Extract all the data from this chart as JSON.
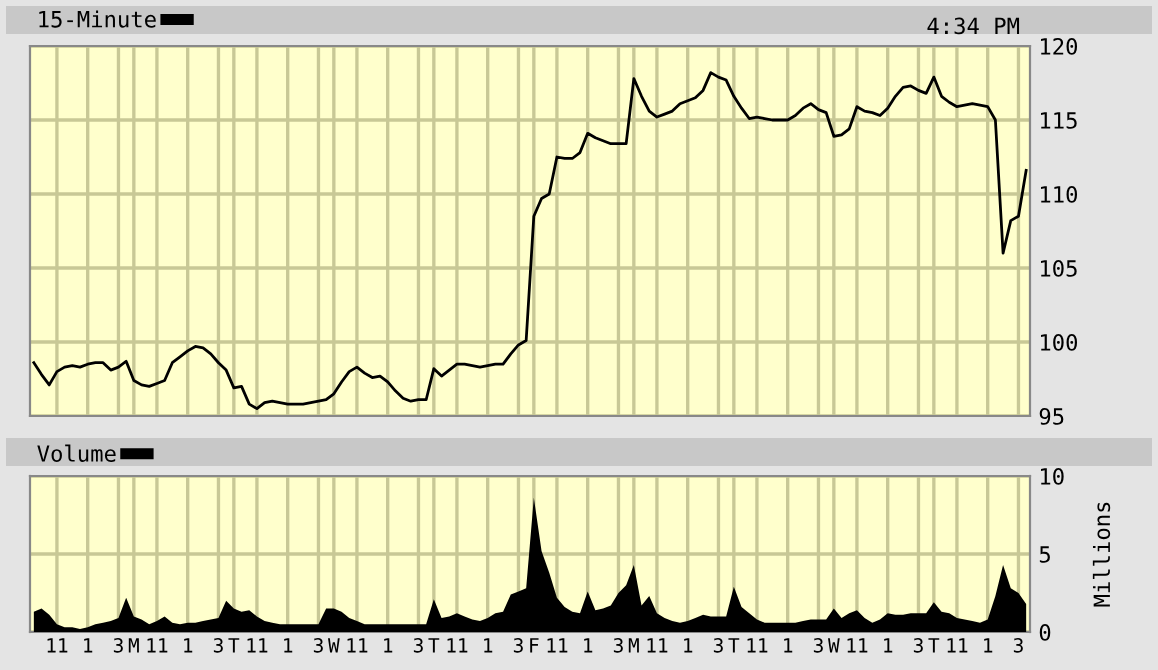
{
  "chart_data": [
    {
      "type": "line",
      "legend": "top left",
      "grid": true,
      "tick_labels": "y",
      "annotations": [
        "4:34 PM"
      ],
      "ylim": [
        95,
        120
      ],
      "yticks": [
        95,
        100,
        105,
        110,
        115,
        120
      ],
      "categories": [
        null,
        null,
        null,
        null,
        null,
        null,
        null,
        null,
        null,
        null,
        null,
        null,
        null,
        null,
        null,
        null,
        null,
        null,
        null,
        null,
        null,
        null,
        null,
        null,
        null,
        null,
        null,
        null,
        null,
        null,
        null,
        null,
        null,
        null,
        null,
        null,
        null,
        null,
        null,
        null,
        null,
        null,
        null,
        null,
        null,
        null,
        null,
        null,
        null,
        null,
        null,
        null,
        null,
        null,
        null,
        null,
        null,
        null,
        null,
        null,
        null,
        null,
        null,
        null,
        null,
        null,
        null,
        null,
        null,
        null,
        null,
        null,
        null,
        null,
        null,
        null,
        null,
        null,
        null,
        null,
        null,
        null,
        null,
        null,
        null,
        null,
        null,
        null,
        null,
        null,
        null,
        null,
        null,
        null,
        null,
        null,
        null,
        null,
        null,
        null,
        null,
        null,
        null,
        null,
        null,
        null,
        null,
        null,
        null,
        null,
        null,
        null,
        null,
        null,
        null,
        null,
        null,
        null,
        null,
        null,
        null,
        null,
        null,
        null,
        null,
        null,
        null,
        null,
        null,
        null
      ],
      "series": [
        {
          "name": "15-Minute",
          "color": "#000000",
          "values": [
            98.6,
            97.8,
            97.1,
            98.0,
            98.3,
            98.4,
            98.3,
            98.5,
            98.6,
            98.6,
            98.1,
            98.3,
            98.7,
            97.4,
            97.1,
            97.0,
            97.2,
            97.4,
            98.6,
            99.0,
            99.4,
            99.7,
            99.6,
            99.2,
            98.6,
            98.1,
            96.9,
            97.0,
            95.8,
            95.5,
            95.9,
            96.0,
            95.9,
            95.8,
            95.8,
            95.8,
            95.9,
            96.0,
            96.1,
            96.5,
            97.3,
            98.0,
            98.3,
            97.9,
            97.6,
            97.7,
            97.3,
            96.7,
            96.2,
            96.0,
            96.1,
            96.1,
            98.2,
            97.7,
            98.1,
            98.5,
            98.5,
            98.4,
            98.3,
            98.4,
            98.5,
            98.5,
            99.2,
            99.8,
            100.1,
            108.5,
            109.7,
            110.0,
            112.5,
            112.4,
            112.4,
            112.8,
            114.1,
            113.8,
            113.6,
            113.4,
            113.4,
            113.4,
            117.8,
            116.6,
            115.6,
            115.2,
            115.4,
            115.6,
            116.1,
            116.3,
            116.5,
            117.0,
            118.2,
            117.9,
            117.7,
            116.6,
            115.8,
            115.1,
            115.2,
            115.1,
            115.0,
            115.0,
            115.0,
            115.3,
            115.8,
            116.1,
            115.7,
            115.5,
            113.9,
            114.0,
            114.4,
            115.9,
            115.6,
            115.5,
            115.3,
            115.8,
            116.6,
            117.2,
            117.3,
            117.0,
            116.8,
            117.9,
            116.6,
            116.2,
            115.9,
            116.0,
            116.1,
            116.0,
            115.9,
            115.0,
            106.0,
            108.2,
            108.5,
            111.6
          ]
        }
      ]
    },
    {
      "type": "area",
      "legend": "top left",
      "grid": true,
      "ylabel": "Millions",
      "ylim": [
        0,
        10
      ],
      "yticks": [
        0,
        5,
        10
      ],
      "categories": [
        null,
        null,
        null,
        "11",
        null,
        null,
        null,
        "1",
        null,
        null,
        null,
        "3",
        null,
        "M",
        null,
        null,
        "11",
        null,
        null,
        null,
        "1",
        null,
        null,
        null,
        "3",
        null,
        "T",
        null,
        null,
        "11",
        null,
        null,
        null,
        "1",
        null,
        null,
        null,
        "3",
        null,
        "W",
        null,
        null,
        "11",
        null,
        null,
        null,
        "1",
        null,
        null,
        null,
        "3",
        null,
        "T",
        null,
        null,
        "11",
        null,
        null,
        null,
        "1",
        null,
        null,
        null,
        "3",
        null,
        "F",
        null,
        null,
        "11",
        null,
        null,
        null,
        "1",
        null,
        null,
        null,
        "3",
        null,
        "M",
        null,
        null,
        "11",
        null,
        null,
        null,
        "1",
        null,
        null,
        null,
        "3",
        null,
        "T",
        null,
        null,
        "11",
        null,
        null,
        null,
        "1",
        null,
        null,
        null,
        "3",
        null,
        "W",
        null,
        null,
        "11",
        null,
        null,
        null,
        "1",
        null,
        null,
        null,
        "3",
        null,
        "T",
        null,
        null,
        "11",
        null,
        null,
        null,
        "1",
        null,
        null,
        null,
        "3",
        null
      ],
      "series": [
        {
          "name": "Volume",
          "color": "#000000",
          "values": [
            1.3,
            1.5,
            1.1,
            0.5,
            0.3,
            0.3,
            0.2,
            0.3,
            0.5,
            0.6,
            0.7,
            0.9,
            2.2,
            1.0,
            0.8,
            0.5,
            0.7,
            1.0,
            0.6,
            0.5,
            0.6,
            0.6,
            0.7,
            0.8,
            0.9,
            2.0,
            1.5,
            1.3,
            1.4,
            1.0,
            0.7,
            0.6,
            0.5,
            0.5,
            0.5,
            0.5,
            0.5,
            0.5,
            1.5,
            1.5,
            1.3,
            0.9,
            0.7,
            0.5,
            0.5,
            0.5,
            0.5,
            0.5,
            0.5,
            0.5,
            0.5,
            0.5,
            2.1,
            0.9,
            1.0,
            1.2,
            1.0,
            0.8,
            0.7,
            0.9,
            1.2,
            1.3,
            2.4,
            2.6,
            2.8,
            8.6,
            5.2,
            3.8,
            2.2,
            1.6,
            1.3,
            1.2,
            2.6,
            1.4,
            1.5,
            1.7,
            2.5,
            3.0,
            4.3,
            1.7,
            2.3,
            1.2,
            0.9,
            0.7,
            0.6,
            0.7,
            0.9,
            1.1,
            1.0,
            1.0,
            1.0,
            2.9,
            1.6,
            1.2,
            0.8,
            0.6,
            0.6,
            0.6,
            0.6,
            0.6,
            0.7,
            0.8,
            0.8,
            0.8,
            1.5,
            0.9,
            1.2,
            1.4,
            0.9,
            0.6,
            0.8,
            1.2,
            1.1,
            1.1,
            1.2,
            1.2,
            1.2,
            1.9,
            1.3,
            1.2,
            0.9,
            0.8,
            0.7,
            0.6,
            0.8,
            2.3,
            4.3,
            2.8,
            2.5,
            1.8
          ]
        }
      ]
    }
  ]
}
